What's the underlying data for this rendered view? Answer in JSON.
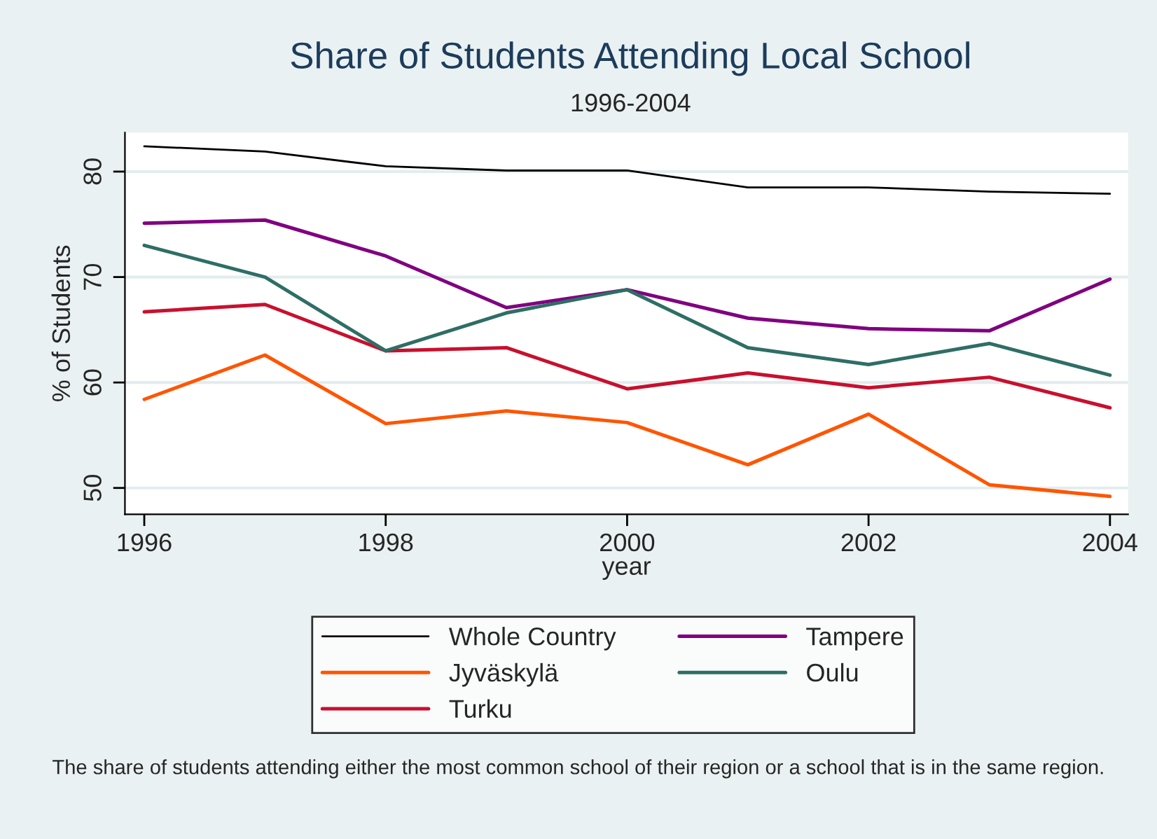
{
  "chart_data": {
    "type": "line",
    "title": "Share of Students Attending Local School",
    "subtitle": "1996-2004",
    "xlabel": "year",
    "ylabel": "% of Students",
    "x": [
      1996,
      1997,
      1998,
      1999,
      2000,
      2001,
      2002,
      2003,
      2004
    ],
    "series": [
      {
        "name": "Whole Country",
        "color": "#000000",
        "values": [
          82.4,
          81.9,
          80.5,
          80.1,
          80.1,
          78.5,
          78.5,
          78.1,
          77.9
        ]
      },
      {
        "name": "Jyväskylä",
        "color": "#ff5500",
        "values": [
          58.4,
          62.6,
          56.1,
          57.3,
          56.2,
          52.2,
          57.0,
          50.3,
          49.2
        ]
      },
      {
        "name": "Turku",
        "color": "#c8102e",
        "values": [
          66.7,
          67.4,
          63.0,
          63.3,
          59.4,
          60.9,
          59.5,
          60.5,
          57.6
        ]
      },
      {
        "name": "Tampere",
        "color": "#800080",
        "values": [
          75.1,
          75.4,
          72.0,
          67.1,
          68.8,
          66.1,
          65.1,
          64.9,
          69.8
        ]
      },
      {
        "name": "Oulu",
        "color": "#2e6e65",
        "values": [
          73.0,
          70.0,
          63.0,
          66.6,
          68.8,
          63.3,
          61.7,
          63.7,
          60.7
        ]
      }
    ],
    "xlim": [
      1995.84,
      2004.15
    ],
    "ylim": [
      47.5,
      83.7
    ],
    "xticks": [
      1996,
      1998,
      2000,
      2002,
      2004
    ],
    "yticks": [
      50,
      60,
      70,
      80
    ],
    "grid": "y",
    "legend": "bottom",
    "marker": "none",
    "line_style": "solid",
    "annotations": [
      "The share of students attending either the most common school of their region or a school that is in the same region."
    ]
  }
}
